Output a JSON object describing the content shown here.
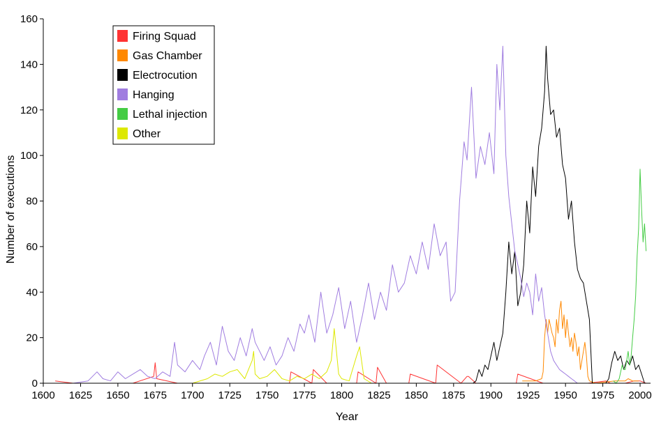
{
  "chart_data": {
    "type": "line",
    "title": "",
    "xlabel": "Year",
    "ylabel": "Number of executions",
    "xlim": [
      1600,
      2007
    ],
    "ylim": [
      0,
      160
    ],
    "xticks": [
      1600,
      1625,
      1650,
      1675,
      1700,
      1725,
      1750,
      1775,
      1800,
      1825,
      1850,
      1875,
      1900,
      1925,
      1950,
      1975,
      2000
    ],
    "yticks": [
      0,
      20,
      40,
      60,
      80,
      100,
      120,
      140,
      160
    ],
    "grid": false,
    "legend_position": "top-left",
    "series": [
      {
        "name": "Firing Squad",
        "color": "#ff3333",
        "x": [
          1608,
          1620,
          1650,
          1660,
          1674,
          1675,
          1676,
          1690,
          1700,
          1710,
          1725,
          1740,
          1750,
          1765,
          1766,
          1780,
          1781,
          1790,
          1805,
          1810,
          1811,
          1823,
          1824,
          1830,
          1845,
          1846,
          1863,
          1864,
          1880,
          1884,
          1885,
          1890,
          1905,
          1917,
          1918,
          1935,
          1950,
          1965,
          1977,
          1980,
          1990,
          1996,
          2000,
          2004
        ],
        "values": [
          1,
          0,
          0,
          0,
          3,
          9,
          2,
          0,
          0,
          0,
          0,
          0,
          0,
          0,
          5,
          0,
          6,
          0,
          0,
          0,
          5,
          0,
          7,
          0,
          0,
          4,
          0,
          8,
          0,
          3,
          3,
          0,
          0,
          0,
          4,
          0,
          0,
          0,
          1,
          0,
          0,
          1,
          1,
          0
        ]
      },
      {
        "name": "Gas Chamber",
        "color": "#ff8800",
        "x": [
          1921,
          1930,
          1934,
          1935,
          1936,
          1937,
          1938,
          1939,
          1940,
          1941,
          1942,
          1943,
          1944,
          1945,
          1946,
          1947,
          1948,
          1949,
          1950,
          1951,
          1952,
          1953,
          1954,
          1955,
          1956,
          1957,
          1958,
          1959,
          1960,
          1961,
          1962,
          1963,
          1964,
          1965,
          1966,
          1970,
          1983,
          1990,
          1992,
          1995,
          1999
        ],
        "values": [
          1,
          1,
          2,
          5,
          20,
          28,
          22,
          28,
          25,
          22,
          20,
          16,
          28,
          22,
          32,
          36,
          24,
          30,
          20,
          28,
          22,
          16,
          20,
          14,
          22,
          18,
          12,
          16,
          6,
          10,
          14,
          18,
          12,
          3,
          1,
          0,
          1,
          1,
          2,
          1,
          1
        ]
      },
      {
        "name": "Electrocution",
        "color": "#000000",
        "x": [
          1888,
          1890,
          1892,
          1894,
          1896,
          1898,
          1900,
          1902,
          1904,
          1906,
          1908,
          1910,
          1912,
          1914,
          1916,
          1918,
          1920,
          1922,
          1924,
          1926,
          1928,
          1930,
          1932,
          1934,
          1936,
          1937,
          1938,
          1940,
          1942,
          1944,
          1946,
          1948,
          1950,
          1952,
          1954,
          1956,
          1958,
          1960,
          1962,
          1964,
          1966,
          1968,
          1977,
          1979,
          1981,
          1983,
          1985,
          1987,
          1989,
          1991,
          1993,
          1995,
          1997,
          1999,
          2001,
          2003
        ],
        "values": [
          0,
          1,
          6,
          3,
          8,
          6,
          12,
          18,
          10,
          16,
          22,
          40,
          62,
          48,
          58,
          34,
          40,
          52,
          80,
          66,
          95,
          82,
          104,
          112,
          128,
          148,
          134,
          118,
          120,
          108,
          112,
          96,
          90,
          72,
          80,
          62,
          50,
          46,
          44,
          36,
          28,
          0,
          0,
          2,
          9,
          14,
          10,
          12,
          6,
          10,
          8,
          12,
          6,
          8,
          4,
          0
        ]
      },
      {
        "name": "Hanging",
        "color": "#a07de0",
        "x": [
          1610,
          1620,
          1630,
          1636,
          1640,
          1645,
          1650,
          1655,
          1660,
          1665,
          1670,
          1675,
          1680,
          1685,
          1688,
          1690,
          1695,
          1700,
          1705,
          1708,
          1712,
          1716,
          1720,
          1724,
          1728,
          1732,
          1736,
          1740,
          1742,
          1745,
          1748,
          1752,
          1756,
          1760,
          1764,
          1768,
          1772,
          1775,
          1778,
          1782,
          1786,
          1790,
          1794,
          1798,
          1802,
          1806,
          1810,
          1814,
          1818,
          1822,
          1826,
          1830,
          1834,
          1838,
          1842,
          1846,
          1850,
          1854,
          1858,
          1862,
          1866,
          1870,
          1873,
          1876,
          1879,
          1882,
          1884,
          1887,
          1890,
          1893,
          1896,
          1899,
          1902,
          1904,
          1906,
          1908,
          1910,
          1912,
          1914,
          1916,
          1918,
          1920,
          1922,
          1924,
          1926,
          1928,
          1930,
          1932,
          1934,
          1936,
          1938,
          1940,
          1942,
          1944,
          1946,
          1948,
          1950,
          1952,
          1954,
          1956,
          1958,
          1960,
          1962,
          1965,
          1970,
          1980,
          1990,
          2000,
          2004
        ],
        "values": [
          0,
          0,
          1,
          5,
          2,
          1,
          5,
          2,
          4,
          6,
          3,
          2,
          5,
          3,
          18,
          8,
          5,
          10,
          6,
          12,
          18,
          8,
          25,
          14,
          10,
          20,
          12,
          24,
          18,
          14,
          10,
          16,
          8,
          12,
          20,
          14,
          26,
          22,
          30,
          18,
          40,
          22,
          30,
          42,
          24,
          36,
          18,
          30,
          44,
          28,
          40,
          32,
          52,
          40,
          44,
          56,
          48,
          62,
          50,
          70,
          56,
          62,
          36,
          40,
          80,
          106,
          98,
          130,
          90,
          104,
          96,
          110,
          92,
          140,
          120,
          148,
          100,
          82,
          70,
          58,
          52,
          46,
          38,
          44,
          40,
          30,
          48,
          36,
          42,
          30,
          22,
          14,
          10,
          8,
          6,
          5,
          4,
          3,
          2,
          1,
          0,
          0,
          0,
          0,
          0,
          0,
          0,
          0,
          0
        ]
      },
      {
        "name": "Lethal injection",
        "color": "#44cc44",
        "x": [
          1982,
          1984,
          1986,
          1987,
          1988,
          1989,
          1990,
          1991,
          1992,
          1993,
          1994,
          1995,
          1996,
          1997,
          1998,
          1999,
          2000,
          2001,
          2002,
          2003,
          2004
        ],
        "values": [
          1,
          0,
          2,
          5,
          8,
          6,
          6,
          10,
          14,
          8,
          12,
          20,
          28,
          38,
          56,
          68,
          94,
          76,
          62,
          70,
          58
        ]
      },
      {
        "name": "Other",
        "color": "#dde800",
        "x": [
          1700,
          1710,
          1715,
          1720,
          1725,
          1730,
          1735,
          1740,
          1741,
          1742,
          1745,
          1750,
          1755,
          1760,
          1765,
          1770,
          1775,
          1780,
          1785,
          1790,
          1793,
          1795,
          1798,
          1800,
          1805,
          1810,
          1812,
          1815,
          1820,
          1830
        ],
        "values": [
          0,
          2,
          4,
          3,
          5,
          6,
          2,
          10,
          14,
          4,
          2,
          3,
          6,
          2,
          1,
          3,
          2,
          4,
          2,
          5,
          10,
          24,
          4,
          2,
          1,
          12,
          16,
          2,
          0,
          0
        ]
      }
    ]
  }
}
